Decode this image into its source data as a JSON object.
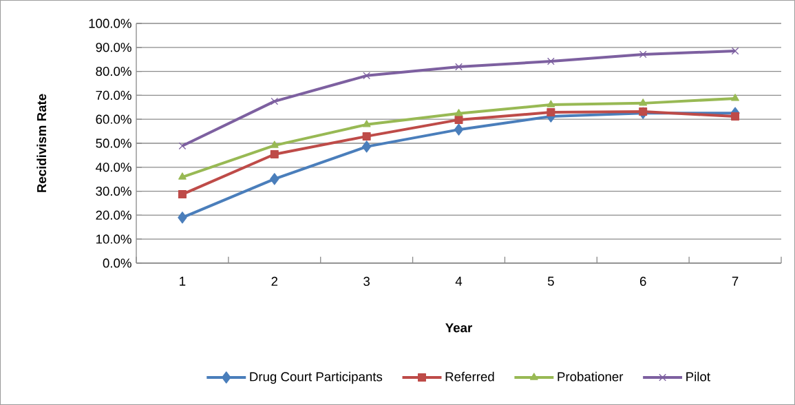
{
  "chart_data": {
    "type": "line",
    "xlabel": "Year",
    "ylabel": "Recidivism Rate",
    "categories": [
      "1",
      "2",
      "3",
      "4",
      "5",
      "6",
      "7"
    ],
    "series": [
      {
        "name": "Drug Court Participants",
        "color": "#4a7ebb",
        "marker": "diamond",
        "values": [
          19.0,
          35.1,
          48.6,
          55.7,
          61.2,
          62.6,
          62.6
        ]
      },
      {
        "name": "Referred",
        "color": "#be4b48",
        "marker": "square",
        "values": [
          28.7,
          45.4,
          52.9,
          59.8,
          62.9,
          63.2,
          61.2
        ]
      },
      {
        "name": "Probationer",
        "color": "#98b954",
        "marker": "triangle",
        "values": [
          35.9,
          49.1,
          57.8,
          62.4,
          66.1,
          66.7,
          68.7
        ]
      },
      {
        "name": "Pilot",
        "color": "#7d60a0",
        "marker": "cross",
        "values": [
          48.9,
          67.5,
          78.2,
          81.9,
          84.2,
          87.1,
          88.5
        ]
      }
    ],
    "ylim": [
      0,
      100
    ],
    "yticks": [
      {
        "value": 0,
        "label": "0.0%"
      },
      {
        "value": 10,
        "label": "10.0%"
      },
      {
        "value": 20,
        "label": "20.0%"
      },
      {
        "value": 30,
        "label": "30.0%"
      },
      {
        "value": 40,
        "label": "40.0%"
      },
      {
        "value": 50,
        "label": "50.0%"
      },
      {
        "value": 60,
        "label": "60.0%"
      },
      {
        "value": 70,
        "label": "70.0%"
      },
      {
        "value": 80,
        "label": "80.0%"
      },
      {
        "value": 90,
        "label": "90.0%"
      },
      {
        "value": 100,
        "label": "100.0%"
      }
    ],
    "grid": "y",
    "legend": "bottom",
    "line_style": "solid"
  }
}
